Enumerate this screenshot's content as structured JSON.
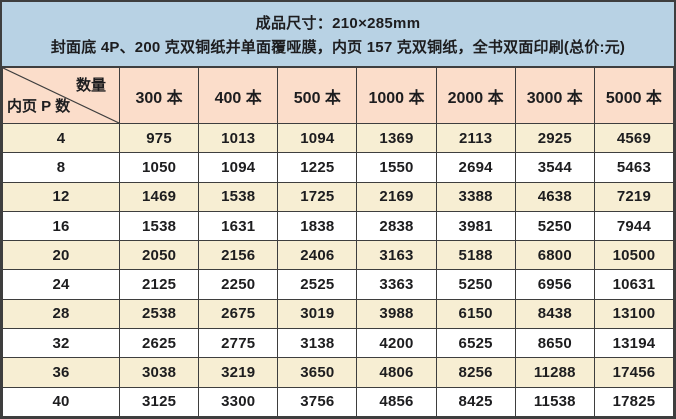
{
  "banner": {
    "line1": "成品尺寸：210×285mm",
    "line2": "封面底 4P、200 克双铜纸并单面覆哑膜，内页 157 克双铜纸，全书双面印刷(总价:元)"
  },
  "chart_data": {
    "type": "table",
    "title": "成品尺寸：210×285mm",
    "subtitle": "封面底 4P、200 克双铜纸并单面覆哑膜，内页 157 克双铜纸，全书双面印刷(总价:元)",
    "corner": {
      "quantity_label": "数量",
      "pages_label": "内页 P 数"
    },
    "columns": [
      "300 本",
      "400 本",
      "500 本",
      "1000 本",
      "2000 本",
      "3000 本",
      "5000 本"
    ],
    "rows": [
      {
        "pages": 4,
        "prices": [
          975,
          1013,
          1094,
          1369,
          2113,
          2925,
          4569
        ]
      },
      {
        "pages": 8,
        "prices": [
          1050,
          1094,
          1225,
          1550,
          2694,
          3544,
          5463
        ]
      },
      {
        "pages": 12,
        "prices": [
          1469,
          1538,
          1725,
          2169,
          3388,
          4638,
          7219
        ]
      },
      {
        "pages": 16,
        "prices": [
          1538,
          1631,
          1838,
          2838,
          3981,
          5250,
          7944
        ]
      },
      {
        "pages": 20,
        "prices": [
          2050,
          2156,
          2406,
          3163,
          5188,
          6800,
          10500
        ]
      },
      {
        "pages": 24,
        "prices": [
          2125,
          2250,
          2525,
          3363,
          5250,
          6956,
          10631
        ]
      },
      {
        "pages": 28,
        "prices": [
          2538,
          2675,
          3019,
          3988,
          6150,
          8438,
          13100
        ]
      },
      {
        "pages": 32,
        "prices": [
          2625,
          2775,
          3138,
          4200,
          6525,
          8650,
          13194
        ]
      },
      {
        "pages": 36,
        "prices": [
          3038,
          3219,
          3650,
          4806,
          8256,
          11288,
          17456
        ]
      },
      {
        "pages": 40,
        "prices": [
          3125,
          3300,
          3756,
          4856,
          8425,
          11538,
          17825
        ]
      }
    ]
  },
  "colors": {
    "banner_bg": "#b8d2e4",
    "header_bg": "#fbddca",
    "row_alt_bg": "#f7eed3",
    "row_bg": "#ffffff",
    "border": "#3e3e3e",
    "text": "#1d1d1f"
  }
}
